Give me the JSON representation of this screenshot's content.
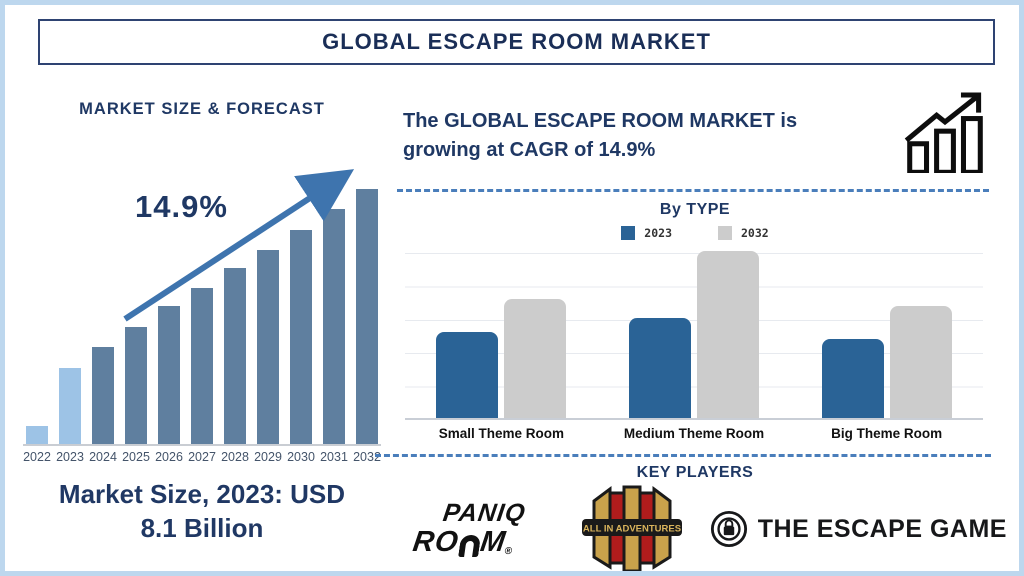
{
  "title": "GLOBAL ESCAPE ROOM MARKET",
  "left_panel": {
    "heading": "MARKET SIZE & FORECAST",
    "cagr_label": "14.9%",
    "caption_lines": [
      "Market Size, 2023: USD",
      "8.1 Billion"
    ]
  },
  "right_panel": {
    "cagr_lines": [
      "The GLOBAL ESCAPE ROOM MARKET is",
      "growing at CAGR of 14.9%"
    ],
    "key_players_title": "KEY PLAYERS",
    "players": {
      "paniq": {
        "word_top": "PANIQ",
        "word_bottom_left": "RO",
        "word_bottom_right": "M",
        "registered": "®"
      },
      "all_in_adventures": {
        "banner_text": "ALL IN ADVENTURES"
      },
      "the_escape_game": {
        "text": "THE ESCAPE GAME"
      }
    }
  },
  "chart_data": [
    {
      "type": "bar",
      "title": "MARKET SIZE & FORECAST",
      "categories": [
        "2022",
        "2023",
        "2024",
        "2025",
        "2026",
        "2027",
        "2028",
        "2029",
        "2030",
        "2031",
        "2032"
      ],
      "values": [
        7,
        30,
        38,
        46,
        54,
        61,
        69,
        76,
        84,
        92,
        100
      ],
      "annotation": "14.9%",
      "xlabel": "",
      "ylabel": "",
      "ylim": [
        0,
        100
      ],
      "notes": "No y-axis labels shown; values are relative bar heights in % of tallest (2032). 2023 market size labeled as USD 8.1 Billion. 2022 and 2023 bars are light blue; 2024-2032 bars are steel blue. Upward trend arrow annotated 14.9%.",
      "legend_position": "none",
      "grid": false
    },
    {
      "type": "bar",
      "title": "By TYPE",
      "categories": [
        "Small Theme Room",
        "Medium Theme Room",
        "Big Theme Room"
      ],
      "series": [
        {
          "name": "2023",
          "values": [
            51.5,
            60,
            47.5
          ]
        },
        {
          "name": "2032",
          "values": [
            71,
            100,
            67
          ]
        }
      ],
      "xlabel": "",
      "ylabel": "",
      "ylim": [
        0,
        100
      ],
      "notes": "No y-axis labels shown; values are relative bar heights in % of plot height (medium 2032 bar touches top gridline). Horizontal gridlines on.",
      "legend_position": "top",
      "grid": true
    }
  ],
  "colors": {
    "navy_text": "#1f3864",
    "frame_border": "#bdd7ee",
    "title_border": "#2e4372",
    "bar_light": "#9dc3e6",
    "bar_steel": "#5f7f9f",
    "arrow_blue": "#3e74ae",
    "dashed_blue": "#4a7ebb",
    "type_blue": "#2a6396",
    "type_gray": "#cccccc",
    "year_label": "#44546a",
    "logo_black": "#111111",
    "aia_gold": "#c9a24b",
    "aia_red": "#b01c1c"
  },
  "icons": {
    "growth_chart": "growth-chart-icon",
    "trend_arrow": "trend-arrow-icon",
    "paniq_lock": "padlock-o-icon",
    "teg_lock": "lock-circle-icon"
  }
}
